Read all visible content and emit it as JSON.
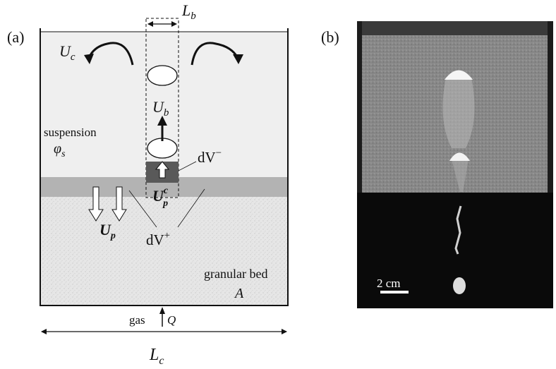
{
  "panel_a": {
    "tag": "(a)",
    "labels": {
      "Lb": "L",
      "Lb_sub": "b",
      "Uc": "U",
      "Uc_sub": "c",
      "Ub": "U",
      "Ub_sub": "b",
      "suspension": "suspension",
      "phi": "φ",
      "phi_sub": "s",
      "dV_minus": "dV",
      "dV_minus_sup": "−",
      "Upc": "U",
      "Upc_sub": "p",
      "Upc_sup": "c",
      "Up": "U",
      "Up_sub": "p",
      "dV_plus": "dV",
      "dV_plus_sup": "+",
      "granular_bed": "granular bed",
      "A": "A",
      "gas": "gas",
      "Q": "Q",
      "Lc": "L",
      "Lc_sub": "c"
    },
    "colors": {
      "suspension": "#efefef",
      "layer": "#b3b3b3",
      "dV_minus": "#595959",
      "bed": "#e6e6e6"
    }
  },
  "panel_b": {
    "tag": "(b)",
    "scale_label": "2 cm",
    "colors": {
      "frame": "#1c1c1c",
      "suspension": "#8c8c8c",
      "bed": "#0a0a0a"
    }
  }
}
